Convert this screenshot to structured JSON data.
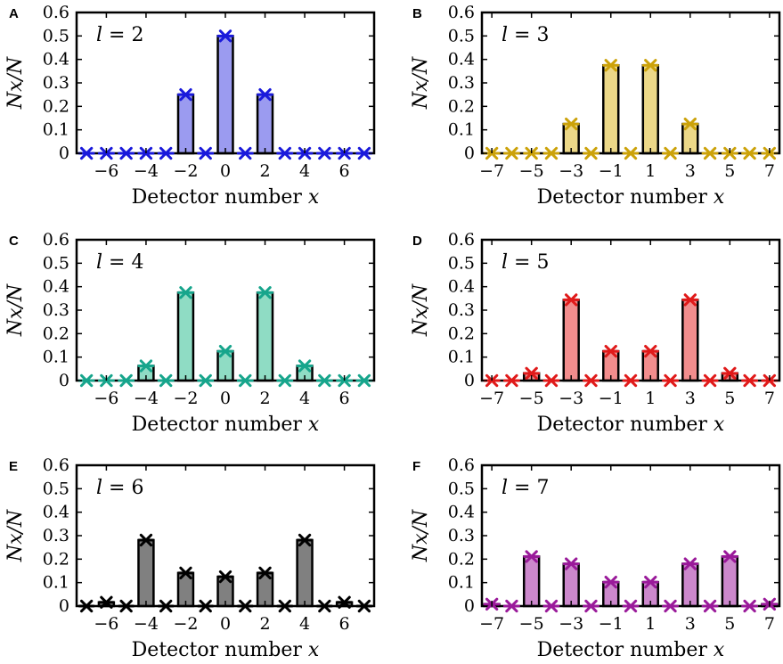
{
  "figure": {
    "ylabel": "Nx/N",
    "xlabel_text": "Detector number ",
    "xlabel_var": "x"
  },
  "chart_data": [
    {
      "type": "bar",
      "panel": "A",
      "label": "l = 2",
      "l_var": "l",
      "l_value": "2",
      "color": "#9b9bf0",
      "marker_color": "#1a1adb",
      "x": [
        -7,
        -6,
        -5,
        -4,
        -3,
        -2,
        -1,
        0,
        1,
        2,
        3,
        4,
        5,
        6,
        7
      ],
      "values": [
        0,
        0,
        0,
        0,
        0,
        0.25,
        0,
        0.5,
        0,
        0.25,
        0,
        0,
        0,
        0,
        0
      ],
      "xticks": [
        -6,
        -4,
        -2,
        0,
        2,
        4,
        6
      ],
      "xtick_labels": [
        "−6",
        "−4",
        "−2",
        "0",
        "2",
        "4",
        "6"
      ],
      "ylim": [
        0,
        0.6
      ],
      "yticks": [
        0,
        0.1,
        0.2,
        0.3,
        0.4,
        0.5,
        0.6
      ],
      "ytick_labels": [
        "0",
        "0.1",
        "0.2",
        "0.3",
        "0.4",
        "0.5",
        "0.6"
      ],
      "xlabel": "Detector number x",
      "ylabel": "Nx/N"
    },
    {
      "type": "bar",
      "panel": "B",
      "label": "l = 3",
      "l_var": "l",
      "l_value": "3",
      "color": "#ecd888",
      "marker_color": "#cca20a",
      "x": [
        -7,
        -6,
        -5,
        -4,
        -3,
        -2,
        -1,
        0,
        1,
        2,
        3,
        4,
        5,
        6,
        7
      ],
      "values": [
        0,
        0,
        0,
        0,
        0.125,
        0,
        0.375,
        0,
        0.375,
        0,
        0.125,
        0,
        0,
        0,
        0
      ],
      "xticks": [
        -7,
        -5,
        -3,
        -1,
        1,
        3,
        5,
        7
      ],
      "xtick_labels": [
        "−7",
        "−5",
        "−3",
        "−1",
        "1",
        "3",
        "5",
        "7"
      ],
      "ylim": [
        0,
        0.6
      ],
      "yticks": [
        0,
        0.1,
        0.2,
        0.3,
        0.4,
        0.5,
        0.6
      ],
      "ytick_labels": [
        "0",
        "0.1",
        "0.2",
        "0.3",
        "0.4",
        "0.5",
        "0.6"
      ],
      "xlabel": "Detector number x",
      "ylabel": "Nx/N"
    },
    {
      "type": "bar",
      "panel": "C",
      "label": "l = 4",
      "l_var": "l",
      "l_value": "4",
      "color": "#8fdcc4",
      "marker_color": "#17a58c",
      "x": [
        -7,
        -6,
        -5,
        -4,
        -3,
        -2,
        -1,
        0,
        1,
        2,
        3,
        4,
        5,
        6,
        7
      ],
      "values": [
        0,
        0,
        0,
        0.0625,
        0,
        0.375,
        0,
        0.125,
        0,
        0.375,
        0,
        0.0625,
        0,
        0,
        0
      ],
      "xticks": [
        -6,
        -4,
        -2,
        0,
        2,
        4,
        6
      ],
      "xtick_labels": [
        "−6",
        "−4",
        "−2",
        "0",
        "2",
        "4",
        "6"
      ],
      "ylim": [
        0,
        0.6
      ],
      "yticks": [
        0,
        0.1,
        0.2,
        0.3,
        0.4,
        0.5,
        0.6
      ],
      "ytick_labels": [
        "0",
        "0.1",
        "0.2",
        "0.3",
        "0.4",
        "0.5",
        "0.6"
      ],
      "xlabel": "Detector number x",
      "ylabel": "Nx/N"
    },
    {
      "type": "bar",
      "panel": "D",
      "label": "l = 5",
      "l_var": "l",
      "l_value": "5",
      "color": "#f28d8d",
      "marker_color": "#e01a1a",
      "x": [
        -7,
        -6,
        -5,
        -4,
        -3,
        -2,
        -1,
        0,
        1,
        2,
        3,
        4,
        5,
        6,
        7
      ],
      "values": [
        0,
        0,
        0.031,
        0,
        0.344,
        0,
        0.125,
        0,
        0.125,
        0,
        0.344,
        0,
        0.031,
        0,
        0
      ],
      "xticks": [
        -7,
        -5,
        -3,
        -1,
        1,
        3,
        5,
        7
      ],
      "xtick_labels": [
        "−7",
        "−5",
        "−3",
        "−1",
        "1",
        "3",
        "5",
        "7"
      ],
      "ylim": [
        0,
        0.6
      ],
      "yticks": [
        0,
        0.1,
        0.2,
        0.3,
        0.4,
        0.5,
        0.6
      ],
      "ytick_labels": [
        "0",
        "0.1",
        "0.2",
        "0.3",
        "0.4",
        "0.5",
        "0.6"
      ],
      "xlabel": "Detector number x",
      "ylabel": "Nx/N"
    },
    {
      "type": "bar",
      "panel": "E",
      "label": "l = 6",
      "l_var": "l",
      "l_value": "6",
      "color": "#808080",
      "marker_color": "#000000",
      "x": [
        -7,
        -6,
        -5,
        -4,
        -3,
        -2,
        -1,
        0,
        1,
        2,
        3,
        4,
        5,
        6,
        7
      ],
      "values": [
        0,
        0.016,
        0,
        0.281,
        0,
        0.141,
        0,
        0.125,
        0,
        0.141,
        0,
        0.281,
        0,
        0.016,
        0
      ],
      "xticks": [
        -6,
        -4,
        -2,
        0,
        2,
        4,
        6
      ],
      "xtick_labels": [
        "−6",
        "−4",
        "−2",
        "0",
        "2",
        "4",
        "6"
      ],
      "ylim": [
        0,
        0.6
      ],
      "yticks": [
        0,
        0.1,
        0.2,
        0.3,
        0.4,
        0.5,
        0.6
      ],
      "ytick_labels": [
        "0",
        "0.1",
        "0.2",
        "0.3",
        "0.4",
        "0.5",
        "0.6"
      ],
      "xlabel": "Detector number x",
      "ylabel": "Nx/N"
    },
    {
      "type": "bar",
      "panel": "F",
      "label": "l = 7",
      "l_var": "l",
      "l_value": "7",
      "color": "#cc88cc",
      "marker_color": "#9a1a9a",
      "x": [
        -7,
        -6,
        -5,
        -4,
        -3,
        -2,
        -1,
        0,
        1,
        2,
        3,
        4,
        5,
        6,
        7
      ],
      "values": [
        0.008,
        0,
        0.211,
        0,
        0.18,
        0,
        0.102,
        0,
        0.102,
        0,
        0.18,
        0,
        0.211,
        0,
        0.008
      ],
      "xticks": [
        -7,
        -5,
        -3,
        -1,
        1,
        3,
        5,
        7
      ],
      "xtick_labels": [
        "−7",
        "−5",
        "−3",
        "−1",
        "1",
        "3",
        "5",
        "7"
      ],
      "ylim": [
        0,
        0.6
      ],
      "yticks": [
        0,
        0.1,
        0.2,
        0.3,
        0.4,
        0.5,
        0.6
      ],
      "ytick_labels": [
        "0",
        "0.1",
        "0.2",
        "0.3",
        "0.4",
        "0.5",
        "0.6"
      ],
      "xlabel": "Detector number x",
      "ylabel": "Nx/N"
    }
  ]
}
